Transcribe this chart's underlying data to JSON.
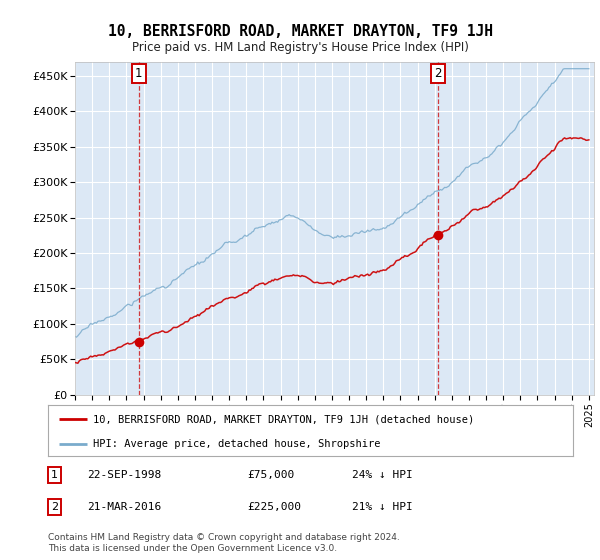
{
  "title": "10, BERRISFORD ROAD, MARKET DRAYTON, TF9 1JH",
  "subtitle": "Price paid vs. HM Land Registry's House Price Index (HPI)",
  "sale1_x": 1998.72,
  "sale1_price": 75000,
  "sale1_label": "22-SEP-1998",
  "sale1_pct": "24% ↓ HPI",
  "sale2_x": 2016.21,
  "sale2_price": 225000,
  "sale2_label": "21-MAR-2016",
  "sale2_pct": "21% ↓ HPI",
  "red_line_color": "#cc0000",
  "blue_line_color": "#7aabcc",
  "sale_marker_color": "#cc0000",
  "vline_color": "#cc0000",
  "plot_bg_color": "#dce8f5",
  "ylim": [
    0,
    470000
  ],
  "yticks": [
    0,
    50000,
    100000,
    150000,
    200000,
    250000,
    300000,
    350000,
    400000,
    450000
  ],
  "legend_label_red": "10, BERRISFORD ROAD, MARKET DRAYTON, TF9 1JH (detached house)",
  "legend_label_blue": "HPI: Average price, detached house, Shropshire",
  "footer": "Contains HM Land Registry data © Crown copyright and database right 2024.\nThis data is licensed under the Open Government Licence v3.0."
}
